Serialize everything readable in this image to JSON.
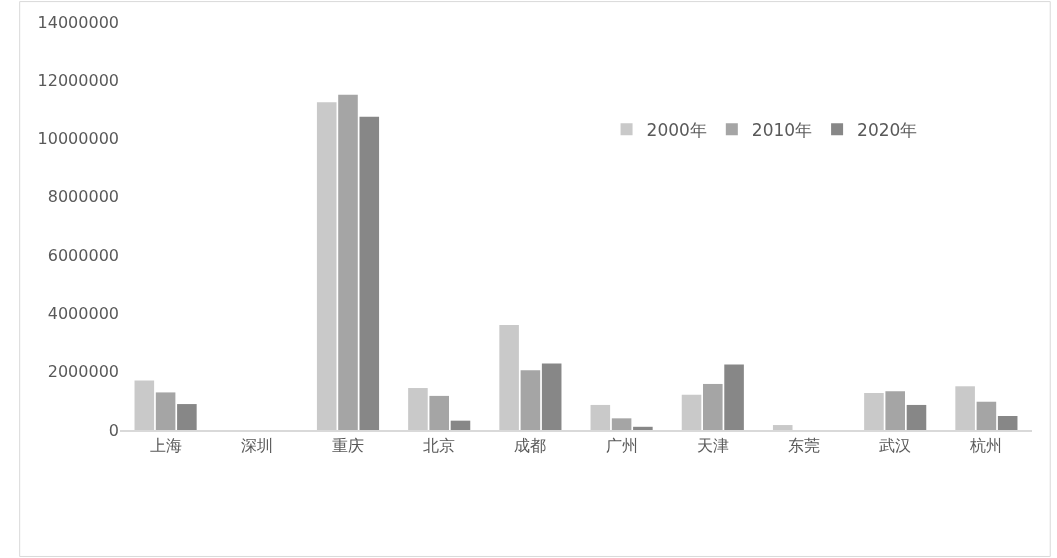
{
  "chart_data": {
    "type": "bar",
    "categories": [
      "上海",
      "深圳",
      "重庆",
      "北京",
      "成都",
      "广州",
      "天津",
      "东莞",
      "武汉",
      "杭州"
    ],
    "series": [
      {
        "name": "2000年",
        "color": "#c9c9c9",
        "values": [
          1700000,
          0,
          11250000,
          1440000,
          3600000,
          860000,
          1210000,
          170000,
          1270000,
          1500000
        ]
      },
      {
        "name": "2010年",
        "color": "#a5a5a5",
        "values": [
          1290000,
          0,
          11500000,
          1170000,
          2050000,
          400000,
          1580000,
          0,
          1330000,
          970000
        ]
      },
      {
        "name": "2020年",
        "color": "#878787",
        "values": [
          890000,
          0,
          10750000,
          320000,
          2280000,
          110000,
          2250000,
          0,
          860000,
          480000
        ]
      }
    ],
    "ylim": [
      0,
      14000000
    ],
    "yticks": [
      0,
      2000000,
      4000000,
      6000000,
      8000000,
      10000000,
      12000000,
      14000000
    ],
    "legend": "top right"
  }
}
